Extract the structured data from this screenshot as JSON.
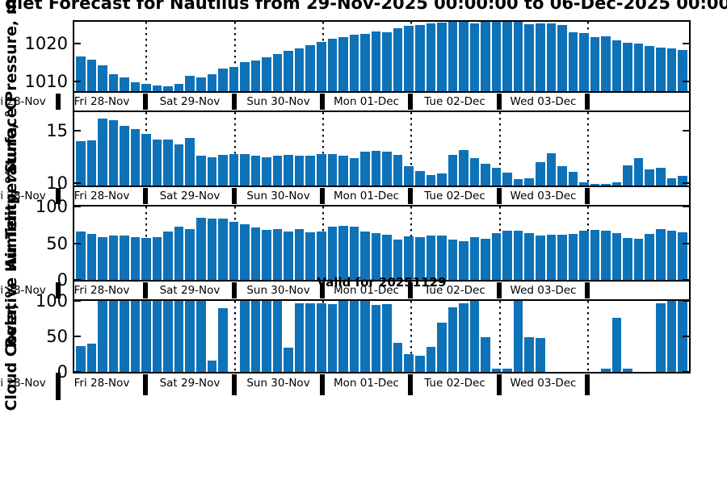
{
  "title": "glet Forecast for Nautilus from 29-Nov-2025 00:00:00 to 06-Dec-2025 00:00:",
  "annotations": {
    "valid_label": "Valid for 20251129"
  },
  "x_axis": {
    "edge_partial_label": "Fri 28-Nov",
    "day_labels": [
      "Fri 28-Nov",
      "Sat 29-Nov",
      "Sun 30-Nov",
      "Mon 01-Dec",
      "Tue 02-Dec",
      "Wed 03-Dec"
    ]
  },
  "style": {
    "bar_color": "#0E72B8",
    "axis_color": "#000000"
  },
  "chart_data": [
    {
      "type": "bar",
      "ylabel": "Surface Pressure, mb",
      "yticks": [
        1010,
        1020
      ],
      "ylim": [
        1007.4,
        1025.8
      ],
      "x_step": "3-hourly",
      "values": [
        1016.6,
        1015.8,
        1014.2,
        1012.0,
        1011.0,
        1009.7,
        1009.3,
        1009.0,
        1008.6,
        1009.3,
        1011.4,
        1011.1,
        1012.0,
        1013.3,
        1013.8,
        1015.0,
        1015.5,
        1016.3,
        1017.2,
        1018.0,
        1018.8,
        1019.6,
        1020.4,
        1021.3,
        1021.8,
        1022.3,
        1022.7,
        1023.2,
        1023.0,
        1024.0,
        1024.7,
        1025.0,
        1025.4,
        1025.6,
        1025.9,
        1026.1,
        1025.4,
        1025.9,
        1026.3,
        1026.2,
        1025.9,
        1025.2,
        1025.3,
        1025.3,
        1024.9,
        1023.1,
        1022.8,
        1021.7,
        1021.9,
        1020.8,
        1020.3,
        1020.0,
        1019.4,
        1019.0,
        1018.7,
        1018.3
      ]
    },
    {
      "type": "bar",
      "ylabel": "Air Temperature, °C",
      "yticks": [
        10,
        15
      ],
      "ylim": [
        9.78,
        16.8
      ],
      "x_step": "3-hourly",
      "values": [
        14.0,
        14.1,
        16.2,
        16.0,
        15.5,
        15.2,
        14.7,
        14.2,
        14.2,
        13.7,
        14.3,
        12.6,
        12.5,
        12.7,
        12.8,
        12.8,
        12.6,
        12.5,
        12.6,
        12.7,
        12.6,
        12.6,
        12.8,
        12.8,
        12.6,
        12.4,
        13.0,
        13.1,
        13.0,
        12.7,
        11.6,
        11.2,
        10.8,
        10.9,
        12.7,
        13.2,
        12.4,
        11.9,
        11.5,
        11.0,
        10.4,
        10.5,
        12.0,
        12.9,
        11.6,
        11.1,
        10.1,
        9.9,
        9.9,
        10.1,
        11.7,
        12.4,
        11.3,
        11.5,
        10.5,
        10.7
      ]
    },
    {
      "type": "bar",
      "ylabel": "Relative Humidity, %",
      "yticks": [
        0,
        50,
        100
      ],
      "ylim": [
        0,
        100
      ],
      "x_step": "3-hourly",
      "values": [
        66,
        63,
        58,
        60,
        60,
        58,
        57,
        58,
        66,
        73,
        69,
        85,
        84,
        83,
        79,
        76,
        71,
        68,
        69,
        66,
        69,
        65,
        66,
        72,
        74,
        72,
        66,
        64,
        62,
        55,
        59,
        58,
        61,
        60,
        55,
        53,
        58,
        56,
        64,
        67,
        67,
        64,
        61,
        62,
        62,
        63,
        67,
        68,
        67,
        64,
        57,
        56,
        63,
        69,
        67,
        65
      ]
    },
    {
      "type": "bar",
      "ylabel": "Cloud Cover, %",
      "yticks": [
        0,
        50,
        100
      ],
      "ylim": [
        0,
        100
      ],
      "x_step": "3-hourly",
      "values": [
        36,
        40,
        100,
        100,
        100,
        100,
        100,
        100,
        100,
        100,
        100,
        100,
        16,
        90,
        0,
        100,
        100,
        100,
        100,
        34,
        97,
        97,
        97,
        95,
        100,
        100,
        100,
        94,
        96,
        41,
        25,
        23,
        35,
        69,
        91,
        97,
        100,
        49,
        4,
        5,
        100,
        49,
        48,
        0,
        0,
        0,
        0,
        0,
        4,
        76,
        5,
        0,
        0,
        97,
        100,
        100
      ]
    }
  ]
}
